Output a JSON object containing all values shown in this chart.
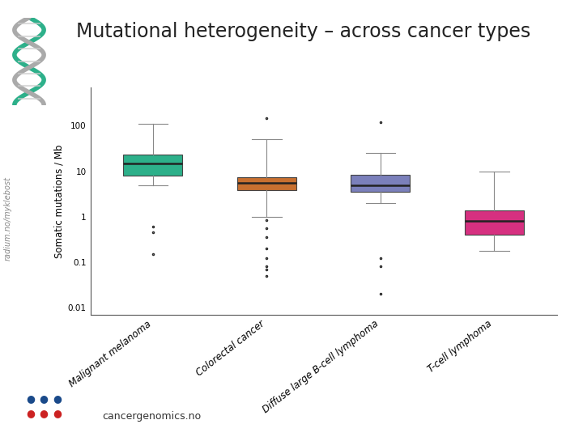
{
  "title": "Mutational heterogeneity – across cancer types",
  "ylabel": "Somatic mutations / Mb",
  "categories": [
    "Malignant melanoma",
    "Colorectal cancer",
    "Diffuse large B-cell lymphoma",
    "T-cell lymphoma"
  ],
  "colors": [
    "#2db08a",
    "#c87030",
    "#7b80bb",
    "#d63080"
  ],
  "box_data": [
    {
      "q1": 8.0,
      "median": 15.0,
      "q3": 23.0,
      "whislo": 5.0,
      "whishi": 110.0,
      "fliers_low": [
        0.6,
        0.45,
        0.15
      ],
      "fliers_high": []
    },
    {
      "q1": 3.8,
      "median": 5.5,
      "q3": 7.5,
      "whislo": 1.0,
      "whishi": 50.0,
      "fliers_low": [
        0.07,
        0.05,
        0.08,
        0.12,
        0.2,
        0.35,
        0.55,
        0.85
      ],
      "fliers_high": [
        150.0
      ]
    },
    {
      "q1": 3.5,
      "median": 5.0,
      "q3": 8.5,
      "whislo": 2.0,
      "whishi": 25.0,
      "fliers_low": [
        0.02,
        0.08,
        0.12
      ],
      "fliers_high": [
        120.0
      ]
    },
    {
      "q1": 0.4,
      "median": 0.8,
      "q3": 1.4,
      "whislo": 0.18,
      "whishi": 10.0,
      "fliers_low": [],
      "fliers_high": []
    }
  ],
  "ylim": [
    0.007,
    700
  ],
  "yticks": [
    0.01,
    0.1,
    1,
    10,
    100
  ],
  "ytick_labels": [
    "0.01",
    "0.1",
    "1",
    "10",
    "100"
  ],
  "title_fontsize": 17,
  "ylabel_fontsize": 8.5,
  "tick_fontsize": 7.5,
  "xlabel_rotation": 38,
  "radium_text": "radium.no/myklebost",
  "footer_text": "cancergenomics.no",
  "dot_colors_top": [
    "#1a4a8a",
    "#1a4a8a",
    "#1a4a8a"
  ],
  "dot_colors_bot": [
    "#cc2222",
    "#cc2222",
    "#cc2222"
  ]
}
